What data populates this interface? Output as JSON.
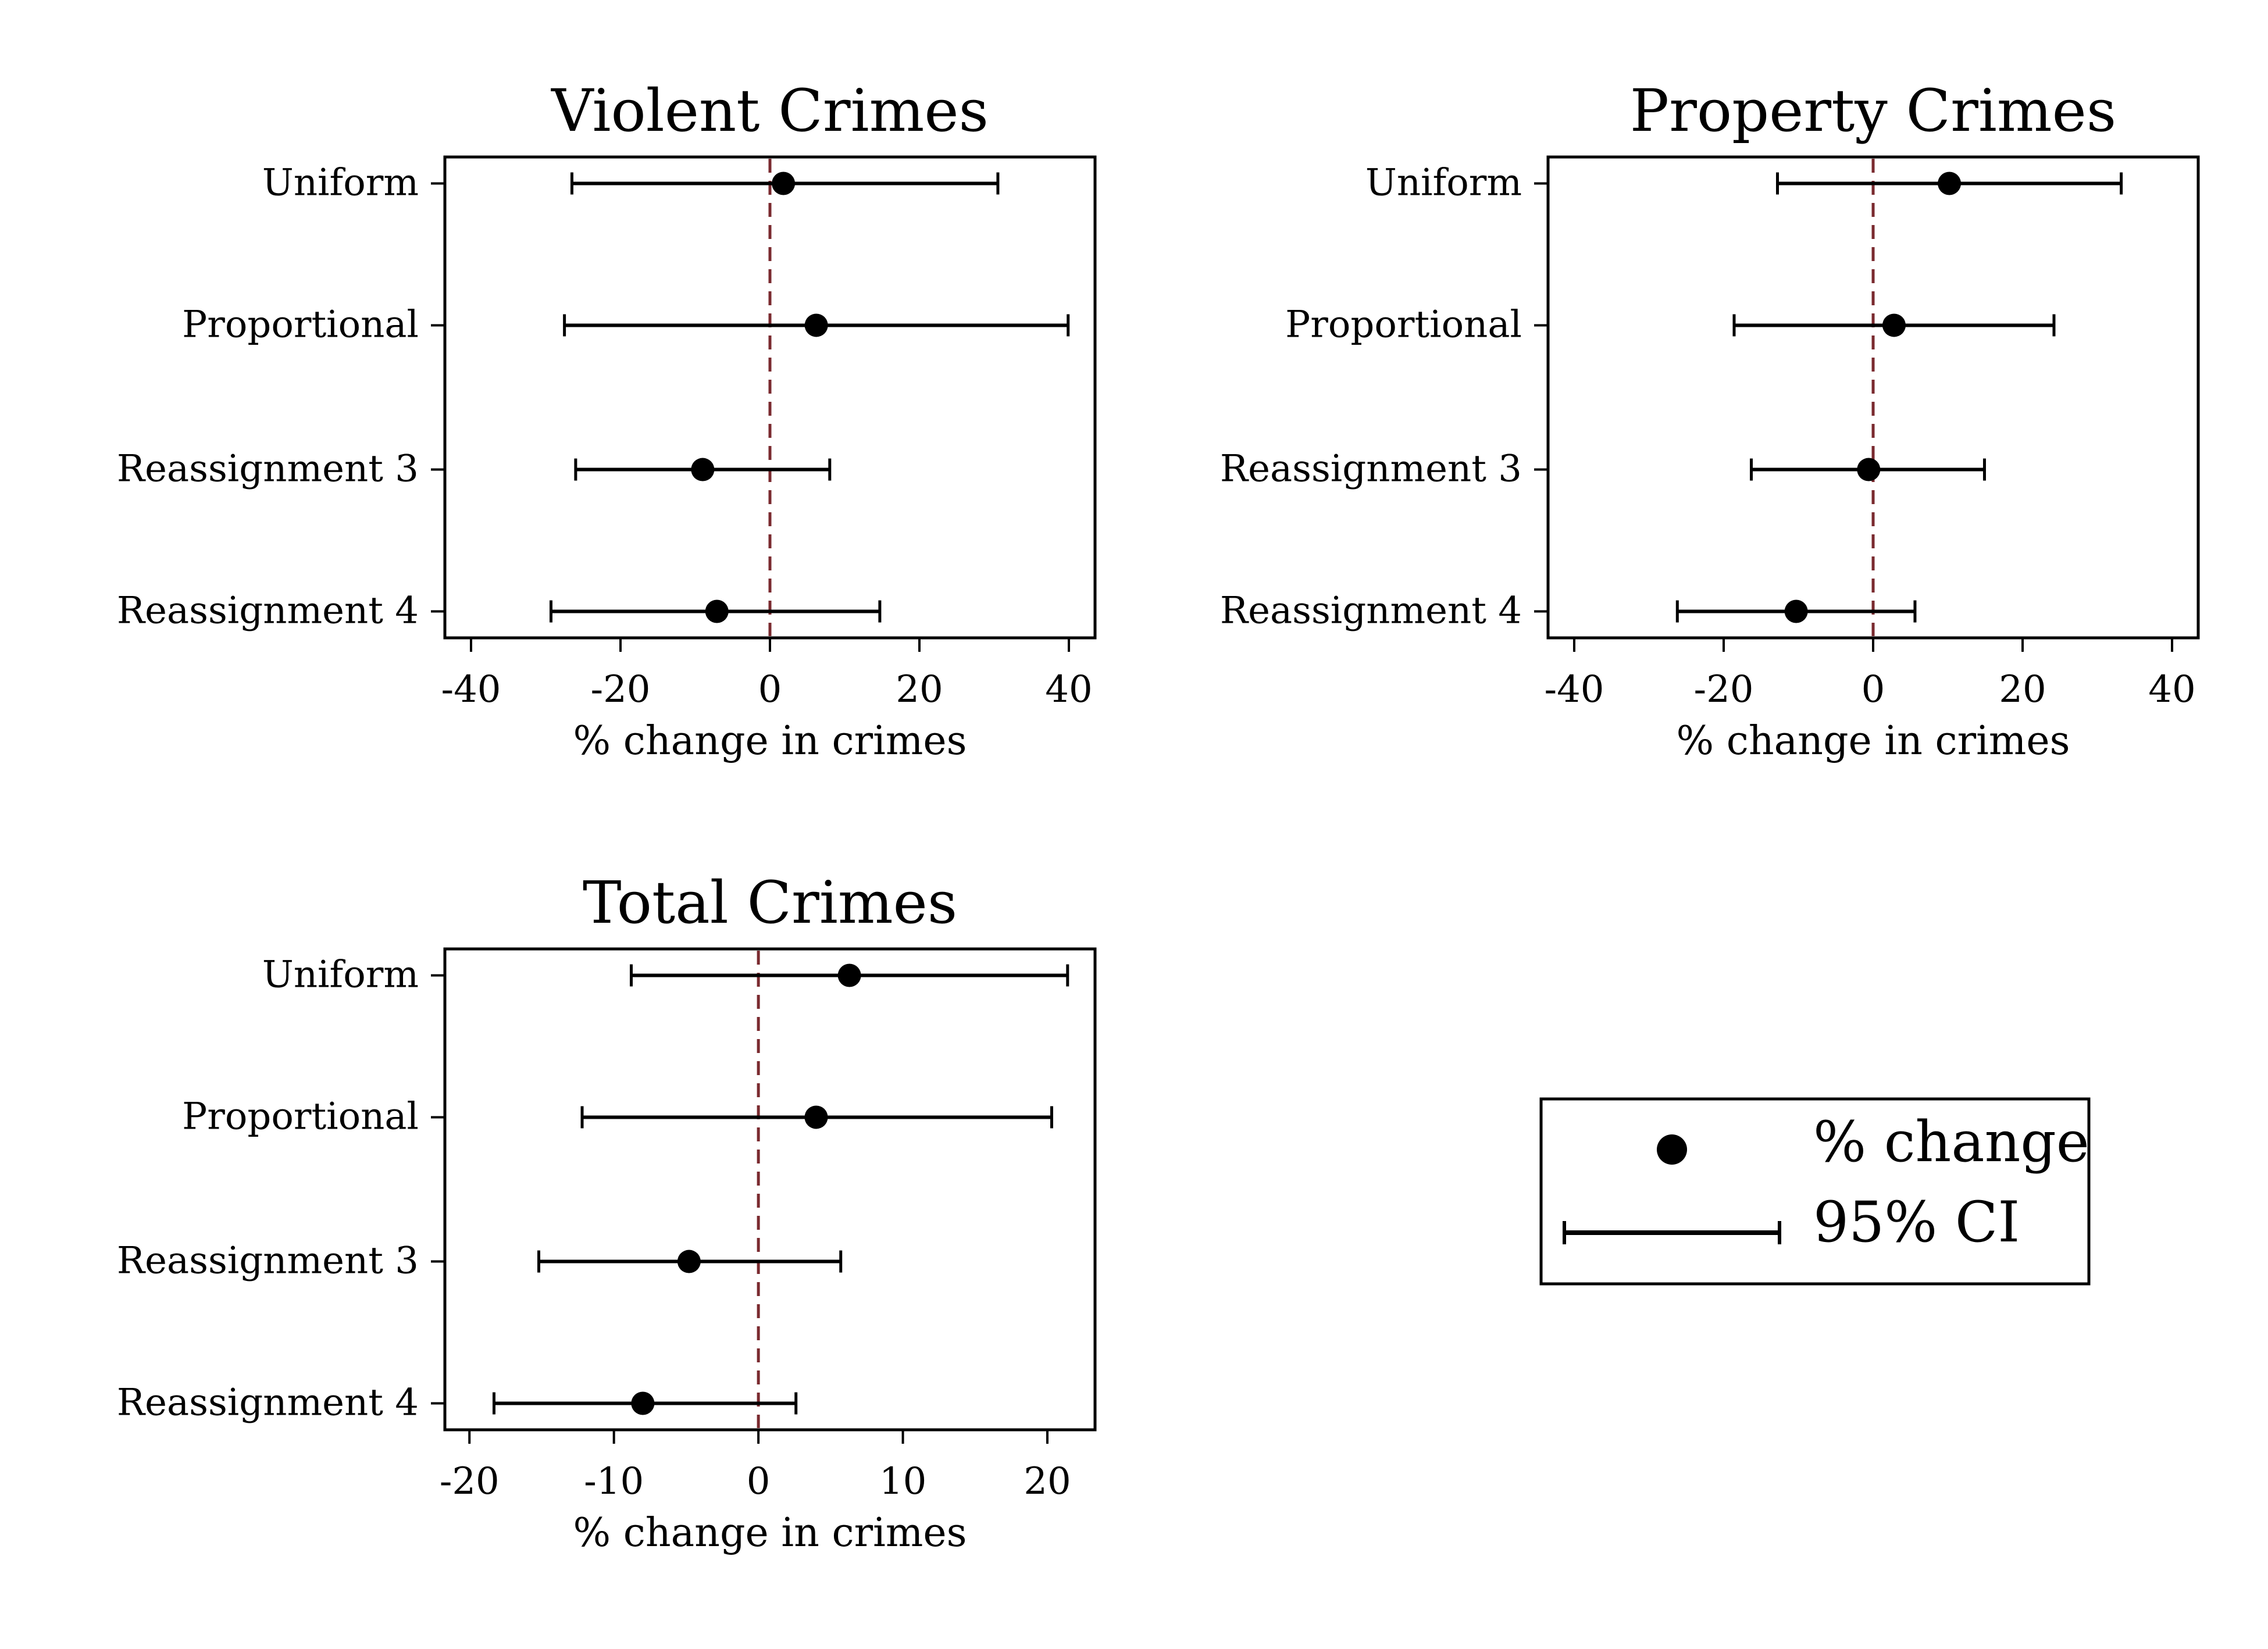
{
  "chart_data": [
    {
      "type": "scatter",
      "title": "Violent Crimes",
      "xlabel": "% change in crimes",
      "categories": [
        "Uniform",
        "Proportional",
        "Reassignment 3",
        "Reassignment 4"
      ],
      "estimate": [
        1.8,
        6.2,
        -9.0,
        -7.1
      ],
      "ci_low": [
        -26.5,
        -27.5,
        -26.0,
        -29.3
      ],
      "ci_high": [
        30.5,
        39.9,
        8.0,
        14.7
      ],
      "xlim": [
        -43.5,
        43.5
      ],
      "xticks": [
        -40,
        -20,
        0,
        20,
        40
      ],
      "reference_line": 0
    },
    {
      "type": "scatter",
      "title": "Property Crimes",
      "xlabel": "% change in crimes",
      "categories": [
        "Uniform",
        "Proportional",
        "Reassignment 3",
        "Reassignment 4"
      ],
      "estimate": [
        10.2,
        2.8,
        -0.6,
        -10.3
      ],
      "ci_low": [
        -12.8,
        -18.6,
        -16.3,
        -26.2
      ],
      "ci_high": [
        33.2,
        24.2,
        14.9,
        5.6
      ],
      "xlim": [
        -43.5,
        43.5
      ],
      "xticks": [
        -40,
        -20,
        0,
        20,
        40
      ],
      "reference_line": 0
    },
    {
      "type": "scatter",
      "title": "Total Crimes",
      "xlabel": "% change in crimes",
      "categories": [
        "Uniform",
        "Proportional",
        "Reassignment 3",
        "Reassignment 4"
      ],
      "estimate": [
        6.3,
        4.0,
        -4.8,
        -8.0
      ],
      "ci_low": [
        -8.8,
        -12.2,
        -15.2,
        -18.3
      ],
      "ci_high": [
        21.4,
        20.3,
        5.7,
        2.6
      ],
      "xlim": [
        -21.7,
        23.3
      ],
      "xticks": [
        -20,
        -10,
        0,
        10,
        20
      ],
      "reference_line": 0
    }
  ],
  "legend": {
    "placement": "bottom-right",
    "items": [
      {
        "label": "% change",
        "marker": "dot"
      },
      {
        "label": "95% CI",
        "marker": "capped-line"
      }
    ]
  },
  "colors": {
    "marker": "#000000",
    "reference_line": "#7a2a2f"
  }
}
